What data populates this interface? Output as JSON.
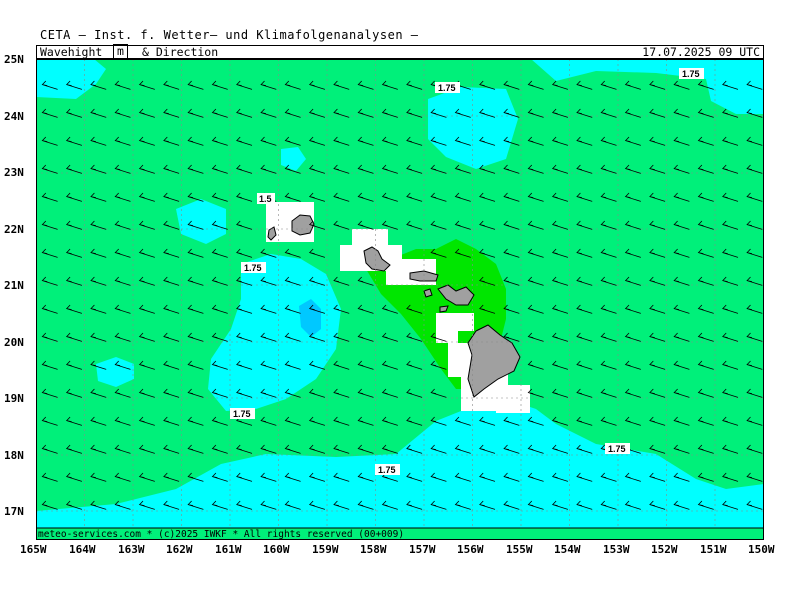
{
  "title": "CETA — Inst. f. Wetter— und Klimafolgenanalysen —",
  "header": {
    "parameter": "Wavehight",
    "unit": "m",
    "direction": "& Direction",
    "valid_time": "17.07.2025 09 UTC"
  },
  "footer": "meteo-services.com * (c)2025 IWKF * All rights reserved (00+009)",
  "map": {
    "lon_range": [
      -165,
      -150
    ],
    "lat_range": [
      16.5,
      25
    ],
    "lat_labels": [
      "25N",
      "24N",
      "23N",
      "22N",
      "21N",
      "20N",
      "19N",
      "18N",
      "17N"
    ],
    "lon_labels": [
      "165W",
      "164W",
      "163W",
      "162W",
      "161W",
      "160W",
      "159W",
      "158W",
      "157W",
      "156W",
      "155W",
      "154W",
      "153W",
      "152W",
      "151W",
      "150W"
    ],
    "wave_direction": "from east-northeast (arrows point west-southwest)",
    "colors": {
      "green_1_5_to_1_75": "#00f07a",
      "cyan_1_75_to_2": "#00ffff",
      "blue_above_2": "#00c8ff",
      "bright_green_below_1_5": "#00e600",
      "land": "#a0a0a0",
      "masked": "#ffffff"
    },
    "contour_labels": [
      "1.75",
      "1.75",
      "1.5",
      "1.75",
      "1.75",
      "1.75",
      "1.75"
    ]
  }
}
